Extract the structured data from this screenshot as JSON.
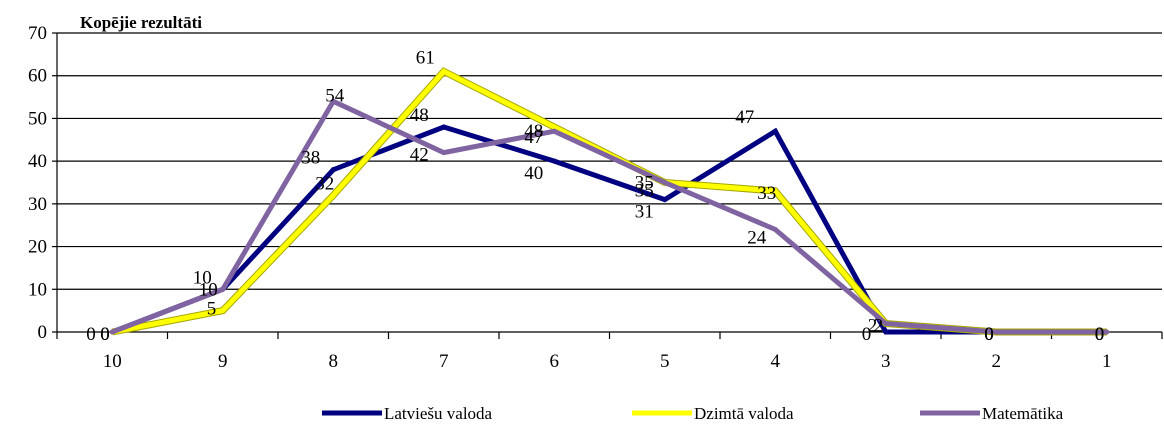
{
  "chart_data": {
    "type": "line",
    "title": "Kopējie rezultāti",
    "xlabel": "",
    "ylabel": "",
    "categories": [
      "10",
      "9",
      "8",
      "7",
      "6",
      "5",
      "4",
      "3",
      "2",
      "1"
    ],
    "ylim": [
      0,
      70
    ],
    "yticks": [
      "0",
      "10",
      "20",
      "30",
      "40",
      "50",
      "60",
      "70"
    ],
    "grid": true,
    "legend_position": "bottom",
    "series": [
      {
        "name": "Latviešu valoda",
        "color": "#000080",
        "values": [
          0,
          10,
          38,
          48,
          40,
          31,
          47,
          0,
          0,
          0
        ]
      },
      {
        "name": "Dzimtā valoda",
        "color": "#ffff00",
        "values": [
          0,
          5,
          32,
          61,
          48,
          35,
          33,
          2,
          0,
          0
        ]
      },
      {
        "name": "Matemātika",
        "color": "#8064a2",
        "values": [
          0,
          10,
          54,
          42,
          47,
          35,
          24,
          2,
          0,
          0
        ]
      }
    ],
    "data_labels": [
      [
        "0",
        "10",
        "38",
        "48",
        "40",
        "31",
        "47",
        "0",
        "0",
        "0"
      ],
      [
        "0",
        "5",
        "32",
        "61",
        "48",
        "35",
        "33",
        "2",
        "0",
        "0"
      ],
      [
        "0",
        "10",
        "54",
        "42",
        "47",
        "35",
        "24",
        "2",
        "0",
        "0"
      ]
    ]
  }
}
